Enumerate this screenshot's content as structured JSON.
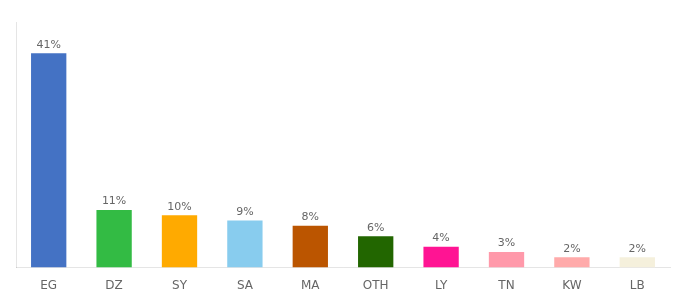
{
  "chart_data": {
    "type": "bar",
    "categories": [
      "EG",
      "DZ",
      "SY",
      "SA",
      "MA",
      "OTH",
      "LY",
      "TN",
      "KW",
      "LB"
    ],
    "values": [
      41,
      11,
      10,
      9,
      8,
      6,
      4,
      3,
      2,
      2
    ],
    "value_labels": [
      "41%",
      "11%",
      "10%",
      "9%",
      "8%",
      "6%",
      "4%",
      "3%",
      "2%",
      "2%"
    ],
    "colors": [
      "#4472c4",
      "#33bb44",
      "#ffaa00",
      "#88ccee",
      "#bb5500",
      "#226600",
      "#ff1493",
      "#ff99aa",
      "#ffaaaa",
      "#f5f0dc"
    ],
    "ylim": [
      0,
      47
    ],
    "grid": false,
    "tick_labels": "x",
    "data_labels": true
  }
}
